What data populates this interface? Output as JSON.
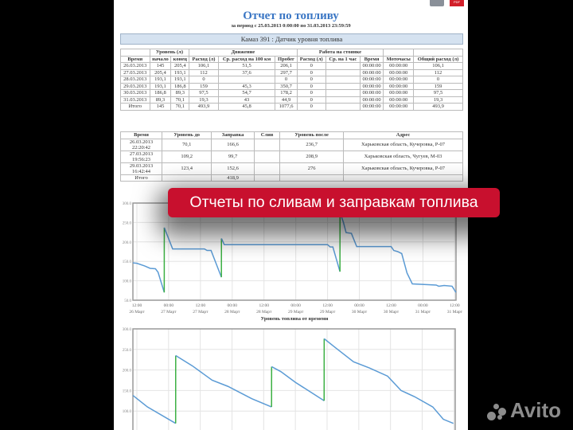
{
  "report": {
    "title": "Отчет по топливу",
    "subtitle": "за период с 25.03.2013 0:00:00 по 31.03.2013 23:59:59",
    "vehicle": "Камаз 391 : Датчик уровня топлива",
    "pdf_label": "PDF"
  },
  "table1": {
    "groups": [
      "Уровень (л)",
      "Движение",
      "Работа на стоянке"
    ],
    "headers": [
      "Время",
      "начало",
      "конец",
      "Расход (л)",
      "Ср. расход на 100 км",
      "Пробег",
      "Расход (л)",
      "Ср. на 1 час",
      "Время",
      "Моточасы",
      "Общий расход (л)"
    ],
    "rows": [
      [
        "26.03.2013",
        "145",
        "205,4",
        "106,1",
        "51,5",
        "206,1",
        "0",
        "",
        "00:00:00",
        "00:00:00",
        "106,1"
      ],
      [
        "27.03.2013",
        "205,4",
        "193,1",
        "112",
        "37,6",
        "297,7",
        "0",
        "",
        "00:00:00",
        "00:00:00",
        "112"
      ],
      [
        "28.03.2013",
        "193,1",
        "193,1",
        "0",
        "",
        "0",
        "0",
        "",
        "00:00:00",
        "00:00:00",
        "0"
      ],
      [
        "29.03.2013",
        "193,1",
        "186,8",
        "159",
        "45,3",
        "350,7",
        "0",
        "",
        "00:00:00",
        "00:00:00",
        "159"
      ],
      [
        "30.03.2013",
        "186,8",
        "89,3",
        "97,5",
        "54,7",
        "178,2",
        "0",
        "",
        "00:00:00",
        "00:00:00",
        "97,5"
      ],
      [
        "31.03.2013",
        "89,3",
        "70,1",
        "19,3",
        "43",
        "44,9",
        "0",
        "",
        "00:00:00",
        "00:00:00",
        "19,3"
      ],
      [
        "Итого",
        "145",
        "70,1",
        "493,9",
        "45,8",
        "1077,6",
        "0",
        "",
        "00:00:00",
        "00:00:00",
        "493,9"
      ]
    ]
  },
  "table2": {
    "headers": [
      "Время",
      "Уровень до",
      "Заправка",
      "Слив",
      "Уровень после",
      "Адрес"
    ],
    "rows": [
      [
        "26.03.2013 22:20:42",
        "70,1",
        "166,6",
        "",
        "236,7",
        "Харьковская область, Кучеровка, Р-07"
      ],
      [
        "27.03.2013 19:56:23",
        "109,2",
        "99,7",
        "",
        "208,9",
        "Харьковская область, Чугуев, М-03"
      ],
      [
        "29.03.2013 16:42:44",
        "123,4",
        "152,6",
        "",
        "276",
        "Харьковская область, Кучеровка, Р-07"
      ],
      [
        "Итого",
        "",
        "418,9",
        "",
        "",
        ""
      ]
    ]
  },
  "banner": "Отчеты по сливам и заправкам топлива",
  "watermark": "Avito",
  "chart_data": [
    {
      "type": "line",
      "title": "",
      "xlabel": "Уровень топлива от времени",
      "ylabel": "",
      "ylim": [
        50,
        300
      ],
      "xlim": [
        "26.03 10:30",
        "31.03 12:30"
      ],
      "grid": true,
      "yticks": [
        "300.0",
        "250.0",
        "200.0",
        "150.0",
        "100.0",
        "50.0"
      ],
      "xticks": [
        [
          "12:00",
          "26 Март"
        ],
        [
          "00:00",
          "27 Март"
        ],
        [
          "12:00",
          "27 Март"
        ],
        [
          "00:00",
          "28 Март"
        ],
        [
          "12:00",
          "28 Март"
        ],
        [
          "00:00",
          "29 Март"
        ],
        [
          "12:00",
          "29 Март"
        ],
        [
          "00:00",
          "30 Март"
        ],
        [
          "12:00",
          "30 Март"
        ],
        [
          "00:00",
          "31 Март"
        ],
        [
          "12:00",
          "31 Март"
        ]
      ],
      "colors": {
        "level": "#5b9bd5",
        "refuel": "#3cb043"
      },
      "series": [
        [
          [
            "26.03 10:30",
            146
          ],
          [
            "26.03 12:00",
            145
          ],
          [
            "26.03 15:00",
            138
          ],
          [
            "26.03 17:00",
            132
          ],
          [
            "26.03 19:00",
            131
          ],
          [
            "26.03 20:00",
            122
          ],
          [
            "26.03 22:20",
            70.1
          ]
        ],
        [
          [
            "26.03 22:21",
            236.7
          ],
          [
            "27.03 01:30",
            182
          ],
          [
            "27.03 13:30",
            182
          ],
          [
            "27.03 14:30",
            178
          ],
          [
            "27.03 16:00",
            178
          ],
          [
            "27.03 19:55",
            109.2
          ]
        ],
        [
          [
            "27.03 19:56",
            208.9
          ],
          [
            "27.03 21:00",
            193
          ],
          [
            "29.03 12:00",
            193
          ],
          [
            "29.03 13:00",
            187
          ],
          [
            "29.03 14:00",
            187
          ],
          [
            "29.03 16:41",
            123.4
          ]
        ],
        [
          [
            "29.03 16:42",
            276
          ],
          [
            "29.03 18:00",
            250
          ],
          [
            "29.03 19:00",
            224
          ],
          [
            "29.03 21:00",
            222
          ],
          [
            "29.03 23:00",
            188
          ],
          [
            "30.03 12:00",
            188
          ],
          [
            "30.03 13:00",
            178
          ],
          [
            "30.03 14:30",
            175
          ],
          [
            "30.03 16:00",
            170
          ],
          [
            "30.03 18:00",
            120
          ],
          [
            "30.03 20:00",
            92
          ],
          [
            "31.03 05:00",
            89
          ],
          [
            "31.03 06:00",
            86
          ],
          [
            "31.03 08:00",
            88
          ],
          [
            "31.03 11:00",
            86
          ],
          [
            "31.03 12:30",
            70
          ]
        ]
      ]
    },
    {
      "type": "line",
      "title": "",
      "ylim": [
        50,
        300
      ],
      "xlim": [
        "26.03 10:30",
        "31.03 12:30"
      ],
      "grid": true,
      "yticks": [
        "300.0",
        "250.0",
        "200.0",
        "150.0",
        "100.0",
        "50.0"
      ],
      "colors": {
        "level": "#5b9bd5",
        "refuel": "#3cb043"
      },
      "series": [
        [
          [
            "26.03 10:30",
            138
          ],
          [
            "26.03 16:00",
            110
          ],
          [
            "27.03 02:41",
            70
          ]
        ],
        [
          [
            "27.03 02:42",
            235
          ],
          [
            "27.03 09:00",
            210
          ],
          [
            "27.03 16:30",
            175
          ],
          [
            "27.03 22:30",
            160
          ],
          [
            "28.03 07:30",
            130
          ],
          [
            "28.03 14:59",
            110
          ]
        ],
        [
          [
            "28.03 15:00",
            208
          ],
          [
            "28.03 18:30",
            196
          ],
          [
            "29.03 00:00",
            170
          ],
          [
            "29.03 10:53",
            125
          ]
        ],
        [
          [
            "29.03 10:54",
            276
          ],
          [
            "29.03 15:00",
            255
          ],
          [
            "29.03 22:00",
            220
          ],
          [
            "30.03 04:00",
            205
          ],
          [
            "30.03 10:54",
            185
          ],
          [
            "30.03 16:00",
            150
          ],
          [
            "30.03 21:06",
            135
          ],
          [
            "31.03 04:00",
            110
          ],
          [
            "31.03 08:00",
            80
          ],
          [
            "31.03 11:48",
            70
          ]
        ]
      ]
    }
  ]
}
